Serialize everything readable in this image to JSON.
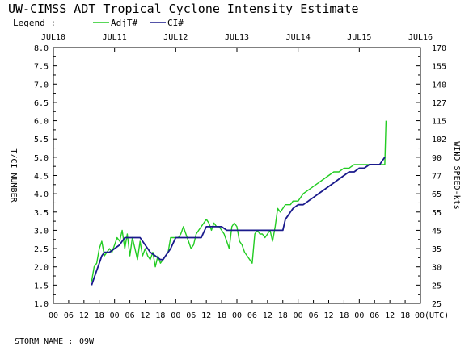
{
  "chart_data": {
    "type": "line",
    "title": "UW-CIMSS ADT Tropical Cyclone Intensity Estimate",
    "legend": {
      "label": "Legend :",
      "position": "top-left",
      "entries": [
        {
          "name": "AdjT#",
          "color": "#22cc22"
        },
        {
          "name": "CI#",
          "color": "#1a1a8c"
        }
      ]
    },
    "ylabel_left": "T/CI NUMBER",
    "ylabel_right": "WIND SPEED-kts",
    "y_ticks": [
      "1.0",
      "1.5",
      "2.0",
      "2.5",
      "3.0",
      "3.5",
      "4.0",
      "4.5",
      "5.0",
      "5.5",
      "6.0",
      "6.5",
      "7.0",
      "7.5",
      "8.0"
    ],
    "ylim": [
      1.0,
      8.0
    ],
    "wind_ticks": [
      "25",
      "25",
      "30",
      "35",
      "45",
      "55",
      "65",
      "77",
      "90",
      "102",
      "115",
      "127",
      "140",
      "155",
      "170"
    ],
    "top_dates": [
      "JUL10",
      "JUL11",
      "JUL12",
      "JUL13",
      "JUL14",
      "JUL15",
      "JUL16"
    ],
    "x_unit": "hours since JUL10 00 UTC",
    "xlim": [
      0,
      144
    ],
    "bottom_hour_labels": [
      "00",
      "06",
      "12",
      "18",
      "00",
      "06",
      "12",
      "18",
      "00",
      "06",
      "12",
      "18",
      "00",
      "06",
      "12",
      "18",
      "00",
      "06",
      "12",
      "18",
      "00",
      "06",
      "12",
      "18",
      "00(UTC)"
    ],
    "grid": false,
    "series": [
      {
        "name": "AdjT#",
        "color": "#22cc22",
        "x": [
          15,
          16,
          17,
          18,
          19,
          20,
          21,
          22,
          23,
          24,
          25,
          26,
          27,
          28,
          29,
          30,
          31,
          32,
          33,
          34,
          35,
          36,
          37,
          38,
          39,
          40,
          41,
          42,
          43,
          44,
          45,
          46,
          47,
          48,
          49,
          50,
          51,
          52,
          53,
          54,
          55,
          56,
          57,
          58,
          59,
          60,
          61,
          62,
          63,
          64,
          65,
          66,
          67,
          68,
          69,
          70,
          71,
          72,
          73,
          74,
          75,
          76,
          77,
          78,
          79,
          80,
          81,
          82,
          83,
          84,
          85,
          86,
          87,
          88,
          89,
          90,
          91,
          92,
          93,
          94,
          95,
          96,
          98,
          100,
          102,
          104,
          106,
          108,
          110,
          112,
          114,
          116,
          118,
          120,
          122,
          124,
          126,
          128,
          129,
          130,
          130.5
        ],
        "y": [
          1.6,
          2.0,
          2.1,
          2.5,
          2.7,
          2.3,
          2.4,
          2.5,
          2.4,
          2.6,
          2.8,
          2.7,
          3.0,
          2.5,
          2.9,
          2.3,
          2.8,
          2.5,
          2.2,
          2.7,
          2.3,
          2.5,
          2.3,
          2.2,
          2.4,
          2.0,
          2.3,
          2.1,
          2.2,
          2.3,
          2.4,
          2.8,
          2.8,
          2.8,
          2.8,
          2.9,
          3.1,
          2.9,
          2.7,
          2.5,
          2.6,
          2.9,
          3.0,
          3.1,
          3.2,
          3.3,
          3.2,
          3.0,
          3.2,
          3.1,
          3.1,
          3.0,
          2.9,
          2.7,
          2.5,
          3.1,
          3.2,
          3.1,
          2.7,
          2.6,
          2.4,
          2.3,
          2.2,
          2.1,
          2.9,
          3.0,
          2.9,
          2.9,
          2.8,
          2.9,
          3.0,
          2.7,
          3.1,
          3.6,
          3.5,
          3.6,
          3.7,
          3.7,
          3.7,
          3.8,
          3.8,
          3.8,
          4.0,
          4.1,
          4.2,
          4.3,
          4.4,
          4.5,
          4.6,
          4.6,
          4.7,
          4.7,
          4.8,
          4.8,
          4.8,
          4.8,
          4.8,
          4.8,
          4.8,
          4.8,
          6.0
        ]
      },
      {
        "name": "CI#",
        "color": "#1a1a8c",
        "x": [
          15,
          16,
          17,
          18,
          19,
          20,
          22,
          24,
          26,
          27,
          28,
          30,
          32,
          34,
          36,
          38,
          40,
          42,
          43,
          44,
          46,
          48,
          50,
          52,
          54,
          56,
          58,
          60,
          62,
          64,
          66,
          68,
          70,
          72,
          74,
          76,
          78,
          80,
          82,
          84,
          86,
          88,
          90,
          91,
          92,
          93,
          94,
          96,
          98,
          100,
          102,
          104,
          106,
          108,
          110,
          112,
          114,
          116,
          118,
          120,
          122,
          124,
          126,
          128,
          129,
          130
        ],
        "y": [
          1.5,
          1.7,
          1.9,
          2.1,
          2.3,
          2.4,
          2.4,
          2.5,
          2.6,
          2.7,
          2.8,
          2.8,
          2.8,
          2.8,
          2.6,
          2.4,
          2.3,
          2.2,
          2.2,
          2.3,
          2.5,
          2.8,
          2.8,
          2.8,
          2.8,
          2.8,
          2.8,
          3.1,
          3.1,
          3.1,
          3.1,
          3.0,
          3.0,
          3.0,
          3.0,
          3.0,
          3.0,
          3.0,
          3.0,
          3.0,
          3.0,
          3.0,
          3.0,
          3.3,
          3.4,
          3.5,
          3.6,
          3.7,
          3.7,
          3.8,
          3.9,
          4.0,
          4.1,
          4.2,
          4.3,
          4.4,
          4.5,
          4.6,
          4.6,
          4.7,
          4.7,
          4.8,
          4.8,
          4.8,
          4.9,
          5.0
        ]
      }
    ]
  },
  "footer": {
    "storm_name_label": "STORM NAME :",
    "storm_name": "09W"
  }
}
